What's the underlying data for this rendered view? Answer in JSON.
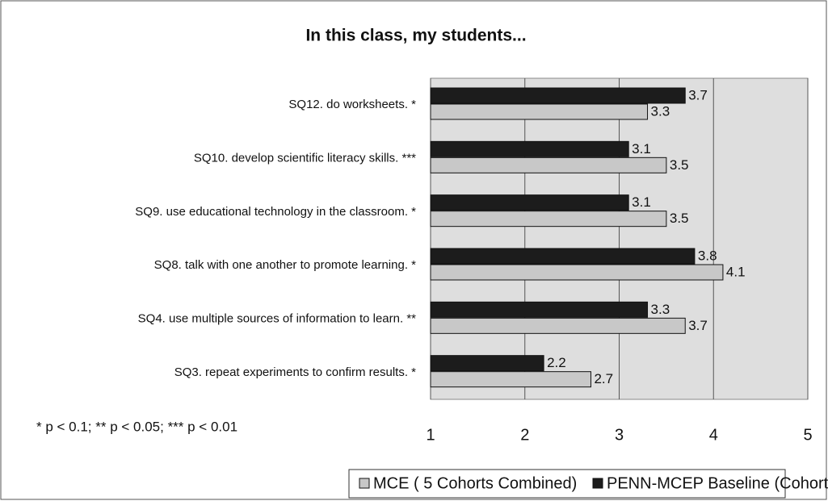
{
  "chart_data": {
    "type": "bar",
    "orientation": "horizontal",
    "title": "In this class, my students...",
    "categories": [
      "SQ12. do worksheets. *",
      "SQ10. develop scientific literacy skills. ***",
      "SQ9. use educational technology in the classroom. *",
      "SQ8. talk with one another to promote learning. *",
      "SQ4. use multiple sources of information to learn. **",
      "SQ3. repeat experiments to confirm results. *"
    ],
    "series": [
      {
        "name": "MCE ( 5 Cohorts Combined)",
        "color": "#c8c8c8",
        "values": [
          3.3,
          3.5,
          3.5,
          4.1,
          3.7,
          2.7
        ]
      },
      {
        "name": "PENN-MCEP Baseline (Cohort A-C Combined)",
        "color": "#1c1c1c",
        "values": [
          3.7,
          3.1,
          3.1,
          3.8,
          3.3,
          2.2
        ]
      }
    ],
    "xlim": [
      1,
      5
    ],
    "xticks": [
      1,
      2,
      3,
      4,
      5
    ],
    "grid": true,
    "annotation": "* p < 0.1;  ** p < 0.05;  *** p < 0.01",
    "legend": "bottom"
  }
}
